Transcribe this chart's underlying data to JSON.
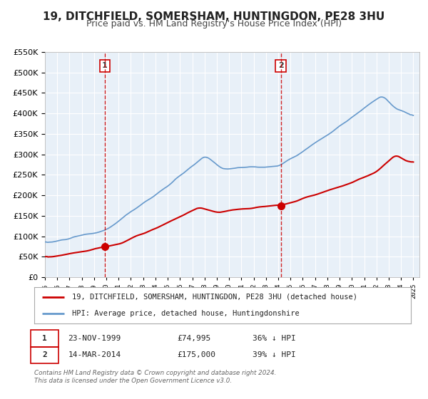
{
  "title": "19, DITCHFIELD, SOMERSHAM, HUNTINGDON, PE28 3HU",
  "subtitle": "Price paid vs. HM Land Registry's House Price Index (HPI)",
  "legend_line1": "19, DITCHFIELD, SOMERSHAM, HUNTINGDON, PE28 3HU (detached house)",
  "legend_line2": "HPI: Average price, detached house, Huntingdonshire",
  "annotation1_date": "23-NOV-1999",
  "annotation1_price": "£74,995",
  "annotation1_hpi": "36% ↓ HPI",
  "annotation2_date": "14-MAR-2014",
  "annotation2_price": "£175,000",
  "annotation2_hpi": "39% ↓ HPI",
  "footnote1": "Contains HM Land Registry data © Crown copyright and database right 2024.",
  "footnote2": "This data is licensed under the Open Government Licence v3.0.",
  "red_color": "#cc0000",
  "blue_color": "#6699cc",
  "bg_color": "#ffffff",
  "plot_bg_color": "#e8f0f8",
  "grid_color": "#ffffff",
  "vline_color": "#cc0000",
  "ylim_max": 550000,
  "ylim_min": 0,
  "title_fontsize": 11,
  "subtitle_fontsize": 9,
  "sale1_year": 1999.875,
  "sale1_price": 74995,
  "sale2_year": 2014.208,
  "sale2_price": 175000
}
